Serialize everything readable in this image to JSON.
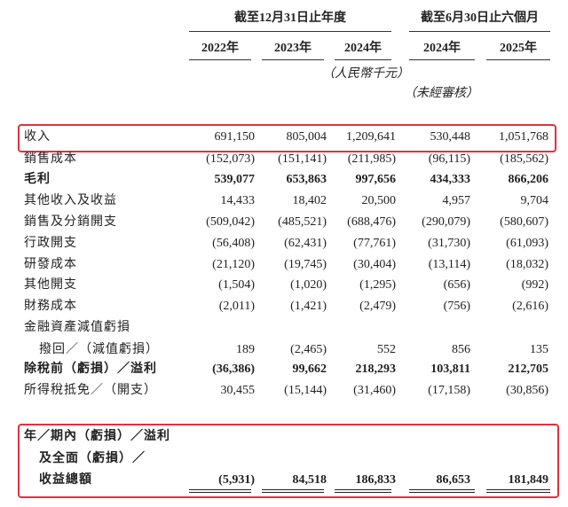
{
  "header": {
    "groups": [
      "截至12月31日止年度",
      "截至6月30日止六個月"
    ],
    "years": [
      "2022年",
      "2023年",
      "2024年",
      "2024年",
      "2025年"
    ],
    "unit": "（人民幣千元）",
    "unaudited": "（未經審核）"
  },
  "rows": [
    {
      "label": [
        "收入"
      ],
      "values": [
        "691,150",
        "805,004",
        "1,209,641",
        "530,448",
        "1,051,768"
      ],
      "bold": false,
      "highlight": true
    },
    {
      "label": [
        "銷售成本"
      ],
      "values": [
        "(152,073)",
        "(151,141)",
        "(211,985)",
        "(96,115)",
        "(185,562)"
      ],
      "bold": false,
      "highlight": false
    },
    {
      "label": [
        "毛利"
      ],
      "values": [
        "539,077",
        "653,863",
        "997,656",
        "434,333",
        "866,206"
      ],
      "bold": true,
      "highlight": false
    },
    {
      "label": [
        "其他收入及收益"
      ],
      "values": [
        "14,433",
        "18,402",
        "20,500",
        "4,957",
        "9,704"
      ],
      "bold": false,
      "highlight": false
    },
    {
      "label": [
        "銷售及分銷開支"
      ],
      "values": [
        "(509,042)",
        "(485,521)",
        "(688,476)",
        "(290,079)",
        "(580,607)"
      ],
      "bold": false,
      "highlight": false
    },
    {
      "label": [
        "行政開支"
      ],
      "values": [
        "(56,408)",
        "(62,431)",
        "(77,761)",
        "(31,730)",
        "(61,093)"
      ],
      "bold": false,
      "highlight": false
    },
    {
      "label": [
        "研發成本"
      ],
      "values": [
        "(21,120)",
        "(19,745)",
        "(30,404)",
        "(13,114)",
        "(18,032)"
      ],
      "bold": false,
      "highlight": false
    },
    {
      "label": [
        "其他開支"
      ],
      "values": [
        "(1,504)",
        "(1,020)",
        "(1,295)",
        "(656)",
        "(992)"
      ],
      "bold": false,
      "highlight": false
    },
    {
      "label": [
        "財務成本"
      ],
      "values": [
        "(2,011)",
        "(1,421)",
        "(2,479)",
        "(756)",
        "(2,616)"
      ],
      "bold": false,
      "highlight": false
    },
    {
      "label": [
        "金融資產減值虧損",
        "撥回／（減值虧損）"
      ],
      "values": [
        "189",
        "(2,465)",
        "552",
        "856",
        "135"
      ],
      "bold": false,
      "highlight": false
    },
    {
      "label": [
        "除稅前（虧損）／溢利"
      ],
      "values": [
        "(36,386)",
        "99,662",
        "218,293",
        "103,811",
        "212,705"
      ],
      "bold": true,
      "highlight": false
    },
    {
      "label": [
        "所得稅抵免／（開支）"
      ],
      "values": [
        "30,455",
        "(15,144)",
        "(31,460)",
        "(17,158)",
        "(30,856)"
      ],
      "bold": false,
      "highlight": false
    },
    {
      "label": [
        "年／期內（虧損）／溢利",
        "及全面（虧損）／",
        "收益總額"
      ],
      "values": [
        "(5,931)",
        "84,518",
        "186,833",
        "86,653",
        "181,849"
      ],
      "bold": true,
      "highlight": true
    }
  ]
}
